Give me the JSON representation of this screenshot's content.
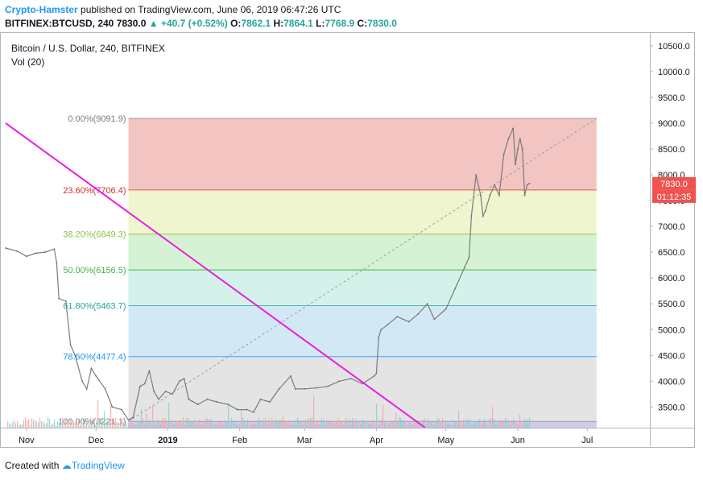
{
  "header": {
    "author": "Crypto-Hamster",
    "published_text": "published on TradingView.com, June 06, 2019 06:47:26 UTC",
    "symbol": "BITFINEX:BTCUSD, 240",
    "last": "7830.0",
    "change": "+40.7 (+0.52%)",
    "o_label": "O:",
    "o_value": "7862.1",
    "h_label": "H:",
    "h_value": "7864.1",
    "l_label": "L:",
    "l_value": "7768.9",
    "c_label": "C:",
    "c_value": "7830.0"
  },
  "pane": {
    "title": "Bitcoin / U.S. Dollar, 240, BITFINEX",
    "volume_label": "Vol (20)"
  },
  "price_badge": {
    "price": "7830.0",
    "countdown": "01:12:35"
  },
  "footer": {
    "created_with": "Created with",
    "brand": "TradingView"
  },
  "colors": {
    "price_line": "#7b7b7b",
    "trendline": "#e91ee0",
    "price_badge": "#ef5350",
    "up_tick": "#26a69a",
    "brand": "#2196f3"
  },
  "chart_data": {
    "type": "line",
    "symbol": "BITFINEX:BTCUSD",
    "interval": "240",
    "y_axis": {
      "ticks": [
        "3500.0",
        "4000.0",
        "4500.0",
        "5000.0",
        "5500.0",
        "6000.0",
        "6500.0",
        "7000.0",
        "7500.0",
        "8000.0",
        "8500.0",
        "9000.0",
        "9500.0",
        "10000.0",
        "10500.0"
      ],
      "ylim": [
        3100,
        10700
      ]
    },
    "x_axis": {
      "ticks": [
        "Nov",
        "Dec",
        "2019",
        "Feb",
        "Mar",
        "Apr",
        "May",
        "Jun",
        "Jul"
      ],
      "xlim": [
        "2018-10-23",
        "2019-07-28"
      ]
    },
    "grid": false,
    "series": [
      {
        "points": [
          [
            "2018-10-23",
            6580
          ],
          [
            "2018-10-28",
            6520
          ],
          [
            "2018-11-01",
            6420
          ],
          [
            "2018-11-05",
            6480
          ],
          [
            "2018-11-09",
            6500
          ],
          [
            "2018-11-13",
            6560
          ],
          [
            "2018-11-14",
            6300
          ],
          [
            "2018-11-15",
            5600
          ],
          [
            "2018-11-18",
            5550
          ],
          [
            "2018-11-20",
            4700
          ],
          [
            "2018-11-22",
            4500
          ],
          [
            "2018-11-25",
            4000
          ],
          [
            "2018-11-27",
            3850
          ],
          [
            "2018-11-29",
            4250
          ],
          [
            "2018-12-01",
            4100
          ],
          [
            "2018-12-05",
            3850
          ],
          [
            "2018-12-08",
            3500
          ],
          [
            "2018-12-12",
            3450
          ],
          [
            "2018-12-15",
            3250
          ],
          [
            "2018-12-17",
            3300
          ],
          [
            "2018-12-20",
            3900
          ],
          [
            "2018-12-22",
            3950
          ],
          [
            "2018-12-24",
            4200
          ],
          [
            "2018-12-26",
            3800
          ],
          [
            "2018-12-28",
            3650
          ],
          [
            "2018-12-31",
            3800
          ],
          [
            "2019-01-03",
            3750
          ],
          [
            "2019-01-06",
            4000
          ],
          [
            "2019-01-08",
            4050
          ],
          [
            "2019-01-10",
            3650
          ],
          [
            "2019-01-14",
            3550
          ],
          [
            "2019-01-18",
            3650
          ],
          [
            "2019-01-22",
            3600
          ],
          [
            "2019-01-27",
            3550
          ],
          [
            "2019-01-31",
            3450
          ],
          [
            "2019-02-04",
            3450
          ],
          [
            "2019-02-07",
            3400
          ],
          [
            "2019-02-10",
            3650
          ],
          [
            "2019-02-14",
            3600
          ],
          [
            "2019-02-18",
            3850
          ],
          [
            "2019-02-23",
            4100
          ],
          [
            "2019-02-25",
            3850
          ],
          [
            "2019-03-01",
            3850
          ],
          [
            "2019-03-06",
            3870
          ],
          [
            "2019-03-11",
            3900
          ],
          [
            "2019-03-16",
            4000
          ],
          [
            "2019-03-21",
            4050
          ],
          [
            "2019-03-26",
            3950
          ],
          [
            "2019-03-31",
            4100
          ],
          [
            "2019-04-01",
            4150
          ],
          [
            "2019-04-02",
            4850
          ],
          [
            "2019-04-03",
            5000
          ],
          [
            "2019-04-06",
            5100
          ],
          [
            "2019-04-10",
            5250
          ],
          [
            "2019-04-15",
            5150
          ],
          [
            "2019-04-19",
            5300
          ],
          [
            "2019-04-23",
            5500
          ],
          [
            "2019-04-26",
            5200
          ],
          [
            "2019-05-01",
            5400
          ],
          [
            "2019-05-05",
            5800
          ],
          [
            "2019-05-09",
            6200
          ],
          [
            "2019-05-11",
            6400
          ],
          [
            "2019-05-12",
            7200
          ],
          [
            "2019-05-14",
            8000
          ],
          [
            "2019-05-16",
            7600
          ],
          [
            "2019-05-17",
            7200
          ],
          [
            "2019-05-18",
            7300
          ],
          [
            "2019-05-20",
            7600
          ],
          [
            "2019-05-22",
            7800
          ],
          [
            "2019-05-24",
            7600
          ],
          [
            "2019-05-26",
            8400
          ],
          [
            "2019-05-28",
            8700
          ],
          [
            "2019-05-30",
            8900
          ],
          [
            "2019-05-31",
            8200
          ],
          [
            "2019-06-01",
            8500
          ],
          [
            "2019-06-02",
            8700
          ],
          [
            "2019-06-03",
            8500
          ],
          [
            "2019-06-04",
            7600
          ],
          [
            "2019-06-05",
            7800
          ],
          [
            "2019-06-06",
            7830
          ]
        ]
      }
    ],
    "fibonacci": {
      "anchor_start": [
        "2018-12-15",
        3221.1
      ],
      "anchor_end": [
        "2019-07-05",
        9091.9
      ],
      "levels": [
        {
          "label": "0.00%(9091.9)",
          "ratio": 0.0,
          "price": 9091.9,
          "line": "#9e9e9e",
          "fill": "#f2c4c2",
          "text": "#787b86"
        },
        {
          "label": "23.60%(7706.4)",
          "ratio": 0.236,
          "price": 7706.4,
          "line": "#ef5350",
          "fill": "#eef5cf",
          "text": "#d32f2f"
        },
        {
          "label": "38.20%(6849.3)",
          "ratio": 0.382,
          "price": 6849.3,
          "line": "#9bc53d",
          "fill": "#d6f2d4",
          "text": "#8bc34a"
        },
        {
          "label": "50.00%(6156.5)",
          "ratio": 0.5,
          "price": 6156.5,
          "line": "#4caf50",
          "fill": "#d5f2ea",
          "text": "#4caf50"
        },
        {
          "label": "61.80%(5463.7)",
          "ratio": 0.618,
          "price": 5463.7,
          "line": "#4db6ac",
          "fill": "#d2e8f4",
          "text": "#26a69a"
        },
        {
          "label": "78.60%(4477.4)",
          "ratio": 0.786,
          "price": 4477.4,
          "line": "#42a5f5",
          "fill": "#e4e4e4",
          "text": "#2196f3"
        },
        {
          "label": "100.00%(3221.1)",
          "ratio": 1.0,
          "price": 3221.1,
          "line": "#9e9e9e",
          "fill": "#cfcbee",
          "text": "#787b86"
        }
      ]
    },
    "trendline": {
      "start": [
        "2018-10-23",
        9000
      ],
      "end": [
        "2019-04-22",
        3100
      ]
    }
  }
}
